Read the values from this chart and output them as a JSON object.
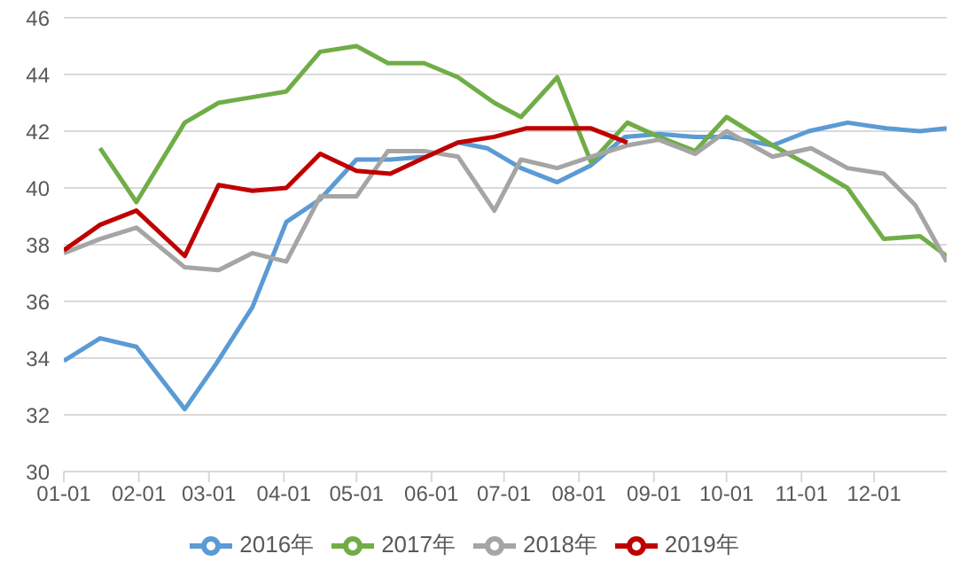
{
  "chart_data": {
    "type": "line",
    "xlim": [
      "--01-01",
      "--12-31"
    ],
    "ylim": [
      30,
      46
    ],
    "yticks": [
      30,
      32,
      34,
      36,
      38,
      40,
      42,
      44,
      46
    ],
    "xticks": [
      {
        "value": "--01-01",
        "label": "01-01"
      },
      {
        "value": "--02-01",
        "label": "02-01"
      },
      {
        "value": "--03-01",
        "label": "03-01"
      },
      {
        "value": "--04-01",
        "label": "04-01"
      },
      {
        "value": "--05-01",
        "label": "05-01"
      },
      {
        "value": "--06-01",
        "label": "06-01"
      },
      {
        "value": "--07-01",
        "label": "07-01"
      },
      {
        "value": "--08-01",
        "label": "08-01"
      },
      {
        "value": "--09-01",
        "label": "09-01"
      },
      {
        "value": "--10-01",
        "label": "10-01"
      },
      {
        "value": "--11-01",
        "label": "11-01"
      },
      {
        "value": "--12-01",
        "label": "12-01"
      }
    ],
    "grid": "y",
    "legend": "bottom",
    "marker": "none",
    "line_style": "solid",
    "series": [
      {
        "name": "2016年",
        "color": "#5b9bd5",
        "x": [
          "--01-01",
          "--01-16",
          "--01-31",
          "--02-20",
          "--03-04",
          "--03-19",
          "--04-02",
          "--04-16",
          "--05-01",
          "--05-15",
          "--05-30",
          "--06-12",
          "--06-24",
          "--07-08",
          "--07-23",
          "--08-06",
          "--08-20",
          "--09-03",
          "--09-18",
          "--10-01",
          "--10-20",
          "--11-04",
          "--11-20",
          "--12-06",
          "--12-20",
          "--12-31"
        ],
        "values": [
          33.9,
          34.7,
          34.4,
          32.2,
          33.8,
          35.8,
          38.8,
          39.6,
          41.0,
          41.0,
          41.1,
          41.6,
          41.4,
          40.7,
          40.2,
          40.8,
          41.8,
          41.9,
          41.8,
          41.8,
          41.5,
          42.0,
          42.3,
          42.1,
          42.0,
          42.1
        ]
      },
      {
        "name": "2017年",
        "color": "#70ad47",
        "x": [
          "--01-16",
          "--01-31",
          "--02-20",
          "--03-05",
          "--03-19",
          "--04-02",
          "--04-16",
          "--05-01",
          "--05-14",
          "--05-29",
          "--06-12",
          "--06-27",
          "--07-08",
          "--07-23",
          "--08-06",
          "--08-21",
          "--09-03",
          "--09-18",
          "--10-01",
          "--10-20",
          "--11-04",
          "--11-20",
          "--12-05",
          "--12-20",
          "--12-31"
        ],
        "values": [
          41.4,
          39.5,
          42.3,
          43.0,
          43.2,
          43.4,
          44.8,
          45.0,
          44.4,
          44.4,
          43.9,
          43.0,
          42.5,
          43.9,
          40.9,
          42.3,
          41.8,
          41.3,
          42.5,
          41.5,
          40.8,
          40.0,
          38.2,
          38.3,
          37.6
        ]
      },
      {
        "name": "2018年",
        "color": "#a5a5a5",
        "x": [
          "--01-01",
          "--01-16",
          "--01-31",
          "--02-20",
          "--03-05",
          "--03-19",
          "--04-02",
          "--04-16",
          "--05-01",
          "--05-14",
          "--05-29",
          "--06-12",
          "--06-27",
          "--07-08",
          "--07-23",
          "--08-06",
          "--08-21",
          "--09-03",
          "--09-18",
          "--10-01",
          "--10-20",
          "--11-05",
          "--11-20",
          "--12-05",
          "--12-18",
          "--12-31"
        ],
        "values": [
          37.7,
          38.2,
          38.6,
          37.2,
          37.1,
          37.7,
          37.4,
          39.7,
          39.7,
          41.3,
          41.3,
          41.1,
          39.2,
          41.0,
          40.7,
          41.1,
          41.5,
          41.7,
          41.2,
          42.0,
          41.1,
          41.4,
          40.7,
          40.5,
          39.4,
          37.4
        ]
      },
      {
        "name": "2019年",
        "color": "#c00000",
        "x": [
          "--01-01",
          "--01-16",
          "--01-31",
          "--02-20",
          "--03-05",
          "--03-19",
          "--04-02",
          "--04-16",
          "--05-01",
          "--05-15",
          "--05-30",
          "--06-12",
          "--06-27",
          "--07-10",
          "--07-23",
          "--08-06",
          "--08-21"
        ],
        "values": [
          37.8,
          38.7,
          39.2,
          37.6,
          40.1,
          39.9,
          40.0,
          41.2,
          40.6,
          40.5,
          41.1,
          41.6,
          41.8,
          42.1,
          42.1,
          42.1,
          41.6
        ]
      }
    ]
  }
}
